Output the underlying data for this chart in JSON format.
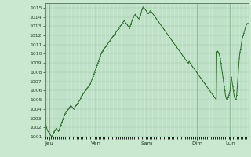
{
  "background_color": "#c8e8d0",
  "plot_bg_color": "#c8e8d0",
  "line_color": "#2d6e2d",
  "marker_color": "#2d6e2d",
  "grid_color": "#a0c8a8",
  "tick_label_color": "#2d4a2d",
  "ylim": [
    1001,
    1015.5
  ],
  "yticks": [
    1001,
    1002,
    1003,
    1004,
    1005,
    1006,
    1007,
    1008,
    1009,
    1010,
    1011,
    1012,
    1013,
    1014,
    1015
  ],
  "day_labels": [
    "Jeu",
    "Ven",
    "Sam",
    "Dim",
    "Lun"
  ],
  "day_positions": [
    0.02,
    0.25,
    0.5,
    0.75,
    0.91
  ],
  "pressure_values": [
    1002.2,
    1002.3,
    1002.0,
    1001.8,
    1001.6,
    1001.5,
    1001.4,
    1001.3,
    1001.2,
    1001.1,
    1001.0,
    1001.1,
    1001.3,
    1001.5,
    1001.6,
    1001.7,
    1001.8,
    1001.9,
    1001.8,
    1001.7,
    1001.6,
    1001.7,
    1001.9,
    1002.1,
    1002.3,
    1002.5,
    1002.7,
    1002.9,
    1003.1,
    1003.3,
    1003.5,
    1003.6,
    1003.7,
    1003.8,
    1003.9,
    1004.0,
    1004.1,
    1004.2,
    1004.3,
    1004.4,
    1004.3,
    1004.2,
    1004.1,
    1004.0,
    1004.1,
    1004.2,
    1004.3,
    1004.4,
    1004.5,
    1004.6,
    1004.7,
    1004.8,
    1004.9,
    1005.0,
    1005.2,
    1005.4,
    1005.5,
    1005.6,
    1005.7,
    1005.8,
    1005.9,
    1006.0,
    1006.1,
    1006.2,
    1006.3,
    1006.4,
    1006.5,
    1006.6,
    1006.7,
    1006.8,
    1007.0,
    1007.2,
    1007.4,
    1007.6,
    1007.8,
    1008.0,
    1008.2,
    1008.4,
    1008.6,
    1008.8,
    1009.0,
    1009.2,
    1009.4,
    1009.6,
    1009.8,
    1010.0,
    1010.2,
    1010.3,
    1010.4,
    1010.5,
    1010.6,
    1010.7,
    1010.8,
    1010.9,
    1011.0,
    1011.1,
    1011.2,
    1011.3,
    1011.4,
    1011.5,
    1011.6,
    1011.7,
    1011.8,
    1011.9,
    1012.0,
    1012.1,
    1012.2,
    1012.3,
    1012.4,
    1012.5,
    1012.6,
    1012.7,
    1012.8,
    1012.9,
    1013.0,
    1013.1,
    1013.2,
    1013.3,
    1013.4,
    1013.5,
    1013.6,
    1013.5,
    1013.4,
    1013.3,
    1013.2,
    1013.1,
    1013.0,
    1012.9,
    1012.8,
    1013.0,
    1013.2,
    1013.4,
    1013.6,
    1013.8,
    1014.0,
    1014.1,
    1014.2,
    1014.3,
    1014.2,
    1014.1,
    1014.0,
    1013.9,
    1013.8,
    1013.9,
    1014.0,
    1014.2,
    1014.5,
    1014.8,
    1015.0,
    1015.1,
    1015.0,
    1014.9,
    1014.8,
    1014.7,
    1014.6,
    1014.5,
    1014.4,
    1014.4,
    1014.5,
    1014.6,
    1014.7,
    1014.6,
    1014.5,
    1014.4,
    1014.3,
    1014.2,
    1014.1,
    1014.0,
    1013.9,
    1013.8,
    1013.7,
    1013.6,
    1013.5,
    1013.4,
    1013.3,
    1013.2,
    1013.1,
    1013.0,
    1012.9,
    1012.8,
    1012.7,
    1012.6,
    1012.5,
    1012.4,
    1012.3,
    1012.2,
    1012.1,
    1012.0,
    1011.9,
    1011.8,
    1011.7,
    1011.6,
    1011.5,
    1011.4,
    1011.3,
    1011.2,
    1011.1,
    1011.0,
    1010.9,
    1010.8,
    1010.7,
    1010.6,
    1010.5,
    1010.4,
    1010.3,
    1010.2,
    1010.1,
    1010.0,
    1009.9,
    1009.8,
    1009.7,
    1009.6,
    1009.5,
    1009.4,
    1009.3,
    1009.2,
    1009.1,
    1009.0,
    1009.1,
    1009.2,
    1009.0,
    1008.9,
    1008.8,
    1008.7,
    1008.6,
    1008.5,
    1008.4,
    1008.3,
    1008.2,
    1008.1,
    1008.0,
    1007.9,
    1007.8,
    1007.7,
    1007.6,
    1007.5,
    1007.4,
    1007.3,
    1007.2,
    1007.1,
    1007.0,
    1006.9,
    1006.8,
    1006.7,
    1006.6,
    1006.5,
    1006.4,
    1006.3,
    1006.2,
    1006.1,
    1006.0,
    1005.9,
    1005.8,
    1005.7,
    1005.6,
    1005.5,
    1005.4,
    1005.3,
    1005.2,
    1005.1,
    1005.0,
    1010.2,
    1010.3,
    1010.2,
    1010.0,
    1009.8,
    1009.5,
    1009.0,
    1008.5,
    1008.0,
    1007.5,
    1007.0,
    1006.5,
    1006.0,
    1005.5,
    1005.2,
    1005.0,
    1005.1,
    1005.3,
    1005.5,
    1005.7,
    1006.0,
    1007.0,
    1007.5,
    1007.0,
    1006.5,
    1006.0,
    1005.5,
    1005.2,
    1005.0,
    1005.1,
    1005.5,
    1006.5,
    1007.5,
    1008.5,
    1009.5,
    1010.2,
    1010.5,
    1011.0,
    1011.5,
    1011.8,
    1012.0,
    1012.3,
    1012.5,
    1012.8,
    1013.0,
    1013.2,
    1013.3,
    1013.3,
    1013.3
  ]
}
